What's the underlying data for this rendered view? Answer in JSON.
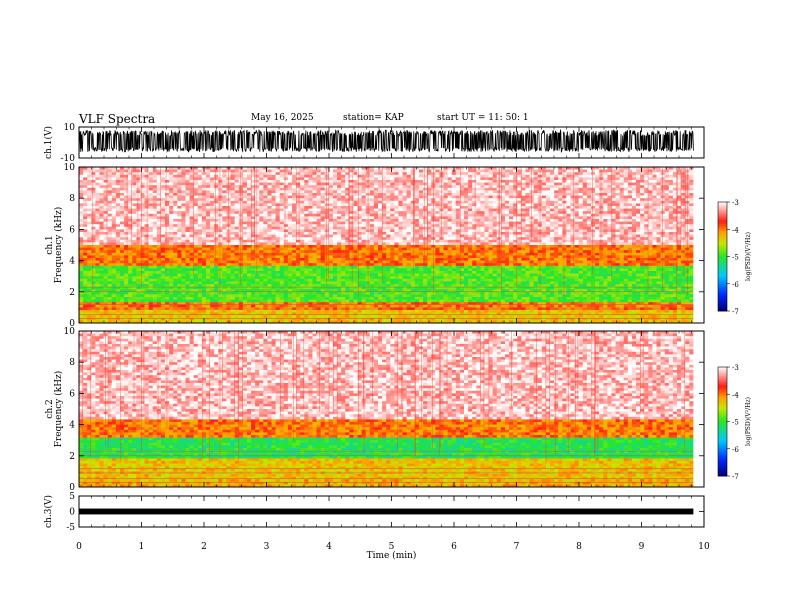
{
  "header": {
    "title": "VLF Spectra",
    "date": "May 16, 2025",
    "station": "station= KAP",
    "start": "start  UT =   11: 50: 1"
  },
  "chart_data": [
    {
      "type": "line",
      "panel": "ch1-waveform",
      "ylabel": "ch.1(V)",
      "yticks": [
        "10",
        "-10"
      ],
      "ylim": [
        -10,
        10
      ],
      "xlim": [
        0,
        10
      ],
      "data_end_min": 9.83,
      "description_of_signal": "dense noise filling roughly -6 to +8 V",
      "signal_range": [
        -6,
        8
      ]
    },
    {
      "type": "heatmap",
      "panel": "ch1-spectrogram",
      "ylabel_line1": "ch.1",
      "ylabel_line2": "Frequency  (kHz)",
      "yticks": [
        "0",
        "2",
        "4",
        "6",
        "8",
        "10"
      ],
      "ylim": [
        0,
        10
      ],
      "xlim": [
        0,
        10
      ],
      "data_end_min": 9.83,
      "bands_khz": [
        {
          "from": 0.0,
          "to": 0.8,
          "level": -4.3
        },
        {
          "from": 0.8,
          "to": 1.3,
          "level": -4.0
        },
        {
          "from": 1.3,
          "to": 3.6,
          "level": -4.9
        },
        {
          "from": 3.6,
          "to": 5.0,
          "level": -4.0
        },
        {
          "from": 5.0,
          "to": 10.0,
          "level": -3.2
        }
      ],
      "colorbar": {
        "label": "log(PSD)(V²/Hz)",
        "ticks": [
          "-3",
          "-4",
          "-5",
          "-6",
          "-7"
        ],
        "range": [
          -7,
          -3
        ]
      }
    },
    {
      "type": "heatmap",
      "panel": "ch2-spectrogram",
      "ylabel_line1": "ch.2",
      "ylabel_line2": "Frequency  (kHz)",
      "yticks": [
        "0",
        "2",
        "4",
        "6",
        "8",
        "10"
      ],
      "ylim": [
        0,
        10
      ],
      "xlim": [
        0,
        10
      ],
      "data_end_min": 9.83,
      "bands_khz": [
        {
          "from": 0.0,
          "to": 0.5,
          "level": -4.2
        },
        {
          "from": 0.5,
          "to": 1.8,
          "level": -4.3
        },
        {
          "from": 1.8,
          "to": 3.1,
          "level": -5.1
        },
        {
          "from": 3.1,
          "to": 4.4,
          "level": -4.0
        },
        {
          "from": 4.4,
          "to": 10.0,
          "level": -3.2
        }
      ],
      "colorbar": {
        "label": "log(PSD)(V²/Hz)",
        "ticks": [
          "-3",
          "-4",
          "-5",
          "-6",
          "-7"
        ],
        "range": [
          -7,
          -3
        ]
      }
    },
    {
      "type": "line",
      "panel": "ch3-waveform",
      "ylabel": "ch.3(V)",
      "yticks": [
        "5",
        "0",
        "-5"
      ],
      "ylim": [
        -5,
        5
      ],
      "xlim": [
        0,
        10
      ],
      "data_end_min": 9.83,
      "signal_range": [
        -0.3,
        0.3
      ]
    }
  ],
  "xaxis": {
    "label": "Time  (min)",
    "ticks": [
      "0",
      "1",
      "2",
      "3",
      "4",
      "5",
      "6",
      "7",
      "8",
      "9",
      "10"
    ]
  }
}
